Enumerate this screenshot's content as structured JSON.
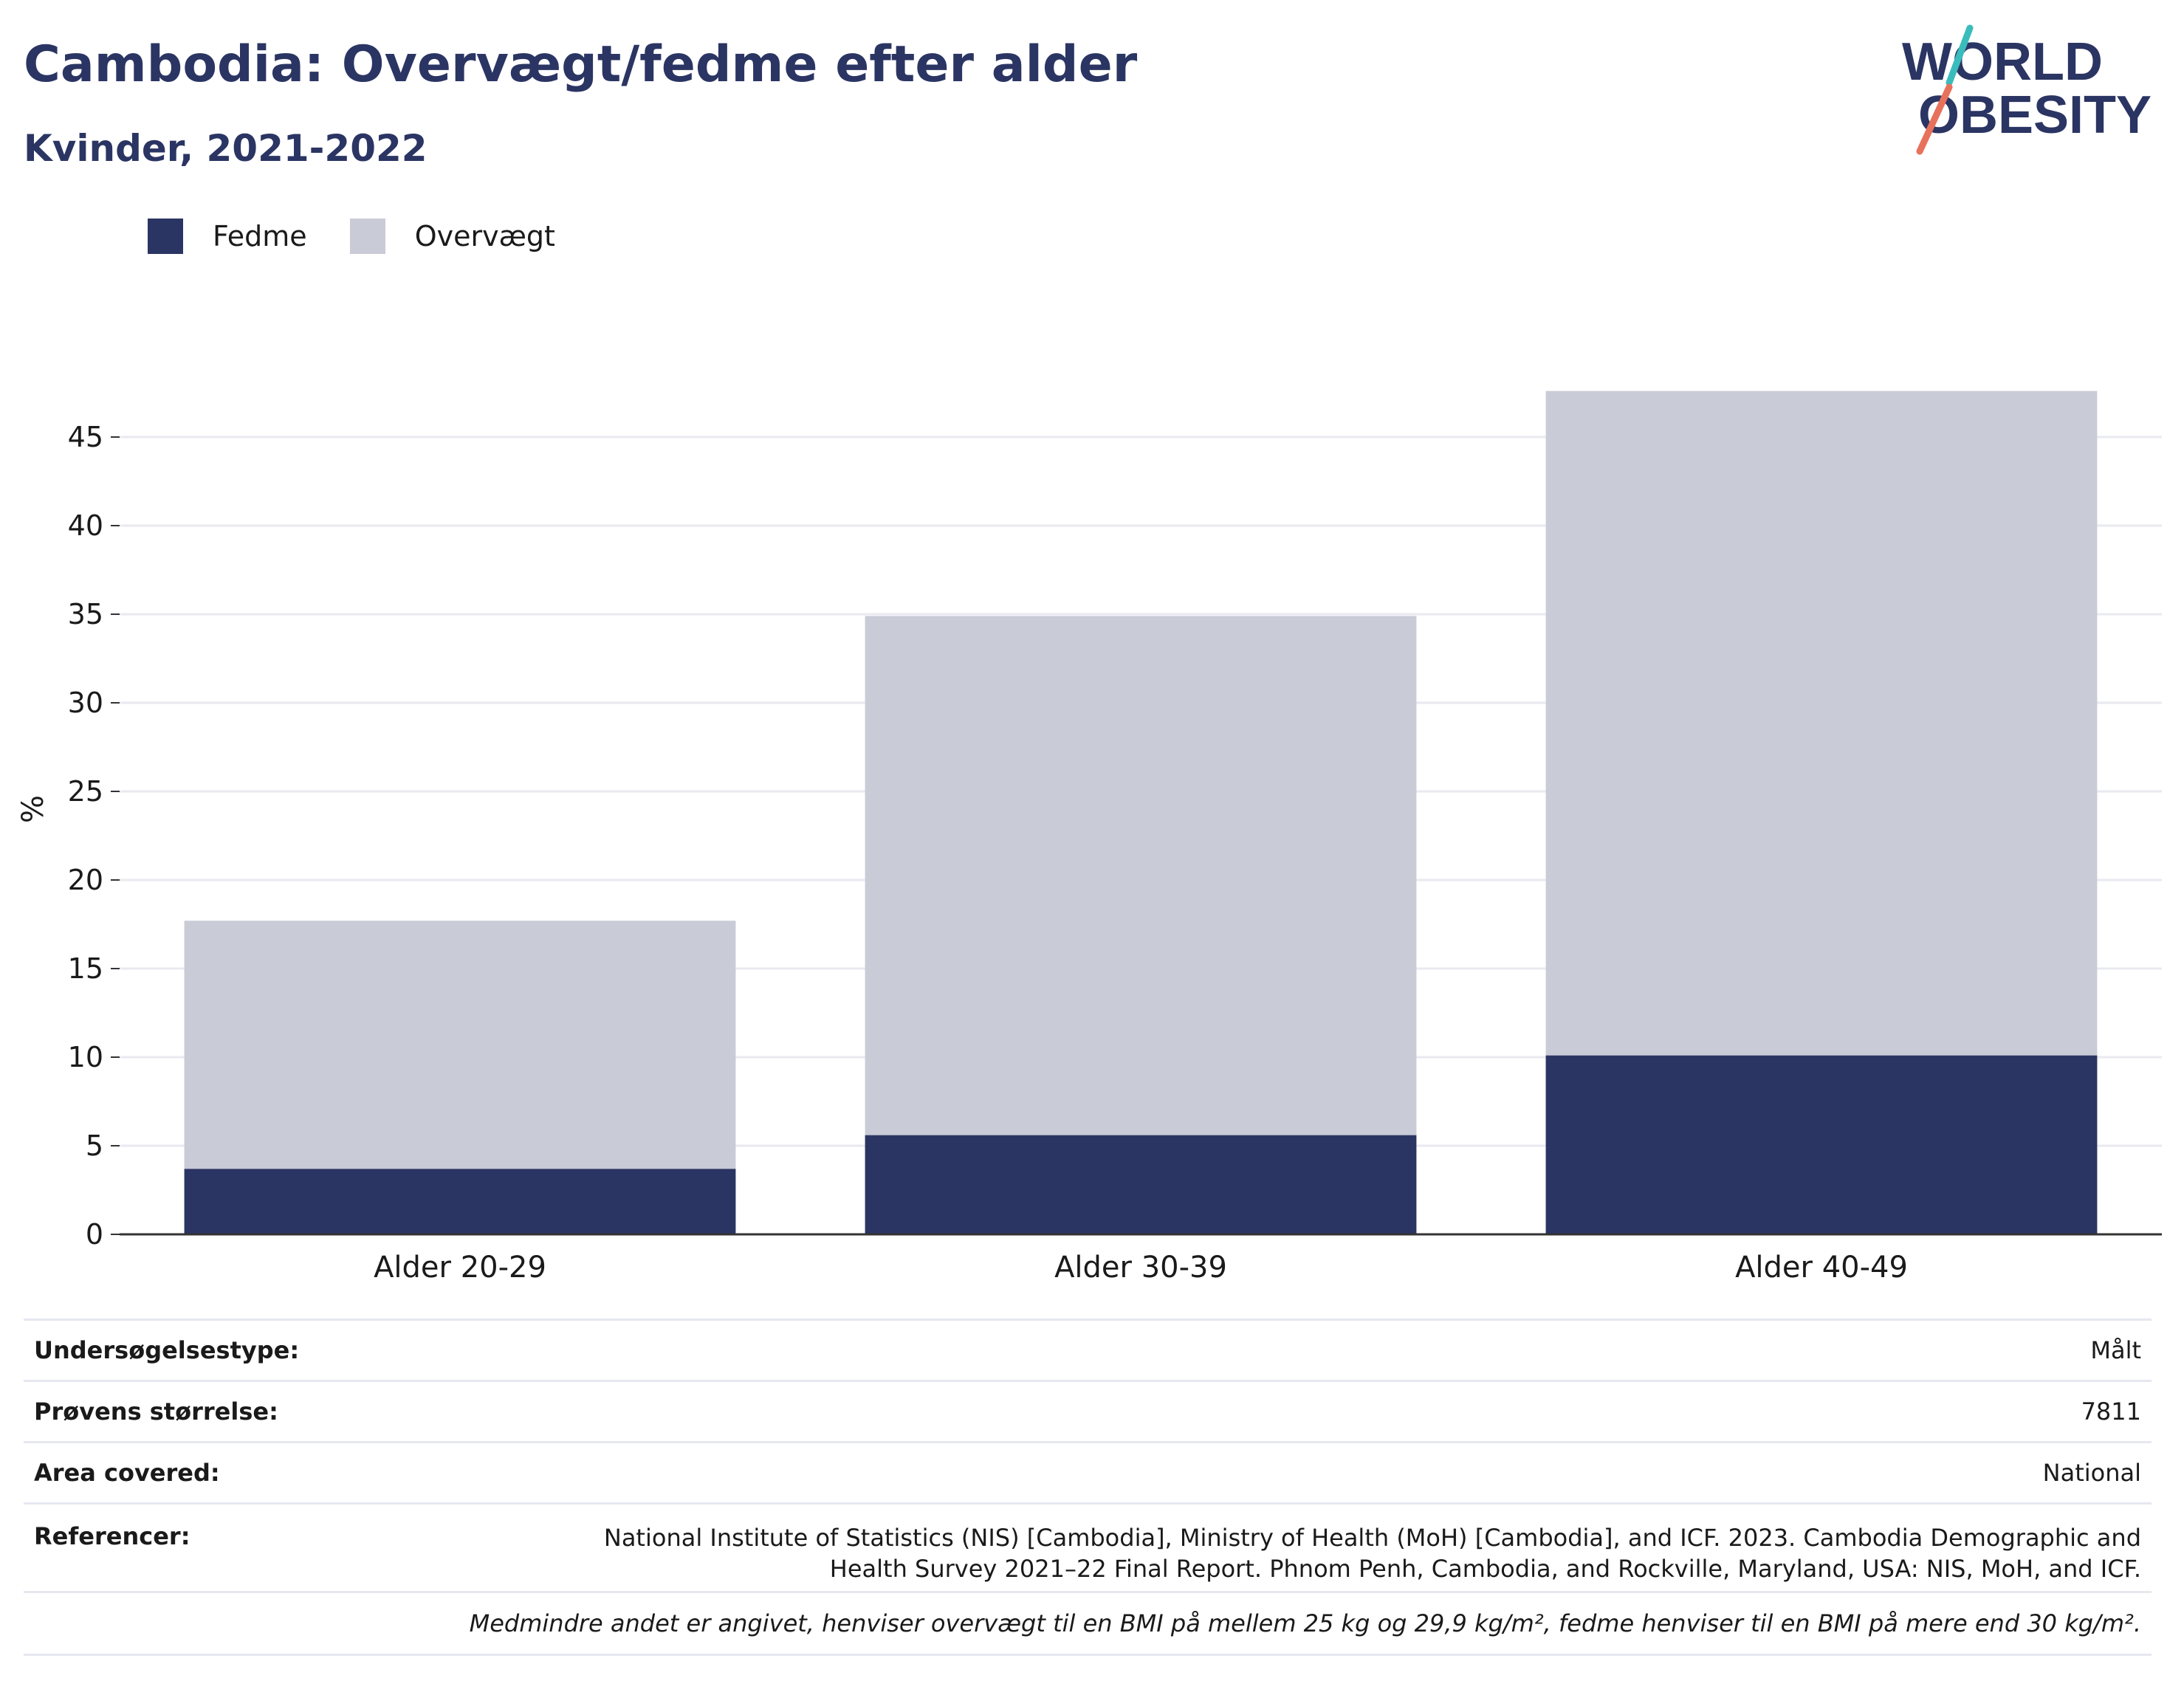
{
  "header": {
    "title": "Cambodia: Overvægt/fedme efter alder",
    "subtitle": "Kvinder, 2021-2022"
  },
  "logo": {
    "line1": "WORLD",
    "line2": "OBESITY"
  },
  "colors": {
    "fedme": "#2b3563",
    "overvaegt": "#c9cbd7",
    "title": "#2b3563",
    "logo_teal": "#3bbcbc",
    "logo_coral": "#e8715b"
  },
  "chart_data": {
    "type": "bar",
    "stacked": true,
    "categories": [
      "Alder 20-29",
      "Alder 30-39",
      "Alder 40-49"
    ],
    "series": [
      {
        "name": "Fedme",
        "values": [
          3.7,
          5.6,
          10.1
        ]
      },
      {
        "name": "Overvægt",
        "values": [
          14.0,
          29.3,
          37.5
        ]
      }
    ],
    "ylabel": "%",
    "ylim": [
      0,
      48
    ],
    "yticks": [
      0,
      5,
      10,
      15,
      20,
      25,
      30,
      35,
      40,
      45
    ],
    "grid": true,
    "legend_position": "top-left"
  },
  "info": {
    "survey_type_label": "Undersøgelsestype:",
    "survey_type_value": "Målt",
    "sample_size_label": "Prøvens størrelse:",
    "sample_size_value": "7811",
    "area_label": "Area covered:",
    "area_value": "National",
    "references_label": "Referencer:",
    "references_value": "National Institute of Statistics (NIS) [Cambodia], Ministry of Health (MoH) [Cambodia], and ICF. 2023. Cambodia Demographic and Health Survey 2021–22 Final Report. Phnom Penh, Cambodia, and Rockville, Maryland, USA: NIS, MoH, and ICF.",
    "note": "Medmindre andet er angivet, henviser overvægt til en BMI på mellem 25 kg og 29,9 kg/m², fedme henviser til en BMI på mere end 30 kg/m²."
  }
}
